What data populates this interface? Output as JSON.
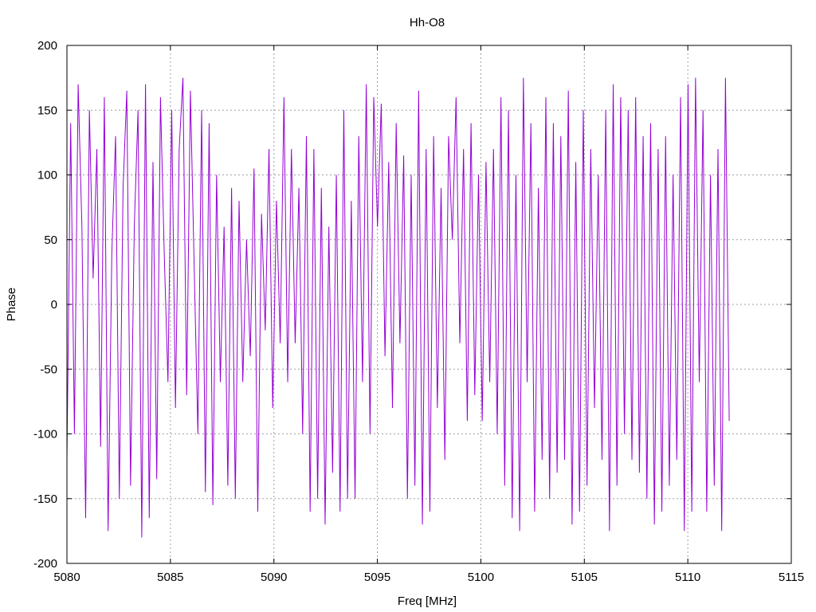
{
  "chart_data": {
    "type": "line",
    "title": "Hh-O8",
    "xlabel": "Freq [MHz]",
    "ylabel": "Phase",
    "xlim": [
      5080,
      5115
    ],
    "ylim": [
      -200,
      200
    ],
    "x_ticks": [
      "5080",
      "5085",
      "5090",
      "5095",
      "5100",
      "5105",
      "5110",
      "5115"
    ],
    "y_ticks": [
      "200",
      "150",
      "100",
      "50",
      "0",
      "-50",
      "-100",
      "-150",
      "-200"
    ],
    "grid": true,
    "series": [
      {
        "color": "#9400d3",
        "x_start": 5080,
        "x_end": 5112,
        "values": [
          -120,
          140,
          -100,
          170,
          60,
          -165,
          150,
          20,
          120,
          -110,
          160,
          -175,
          40,
          130,
          -150,
          90,
          165,
          -140,
          60,
          150,
          -180,
          170,
          -165,
          110,
          -135,
          160,
          40,
          -60,
          150,
          -80,
          120,
          175,
          -70,
          165,
          30,
          -100,
          150,
          -145,
          140,
          -155,
          100,
          -60,
          60,
          -140,
          90,
          -150,
          80,
          -60,
          50,
          -40,
          105,
          -160,
          70,
          -20,
          120,
          -80,
          80,
          -30,
          160,
          -60,
          120,
          -30,
          90,
          -100,
          130,
          -160,
          120,
          -150,
          90,
          -170,
          60,
          -130,
          100,
          -160,
          150,
          -150,
          80,
          -150,
          130,
          -60,
          170,
          -100,
          160,
          60,
          155,
          -40,
          110,
          -80,
          140,
          -30,
          115,
          -150,
          100,
          -140,
          165,
          -170,
          120,
          -160,
          130,
          -80,
          90,
          -120,
          130,
          50,
          160,
          -30,
          120,
          -90,
          140,
          -70,
          100,
          -90,
          110,
          -60,
          120,
          -100,
          160,
          -140,
          150,
          -165,
          100,
          -175,
          175,
          -60,
          140,
          -160,
          90,
          -120,
          160,
          -150,
          140,
          -130,
          130,
          -120,
          165,
          -170,
          110,
          -160,
          150,
          -140,
          120,
          -80,
          100,
          -120,
          150,
          -175,
          170,
          -140,
          160,
          -100,
          150,
          -120,
          160,
          -130,
          130,
          -150,
          140,
          -170,
          120,
          -160,
          130,
          -140,
          100,
          -120,
          160,
          -175,
          170,
          -160,
          175,
          -60,
          150,
          -160,
          100,
          -140,
          120,
          -175,
          175,
          -90
        ]
      }
    ]
  }
}
